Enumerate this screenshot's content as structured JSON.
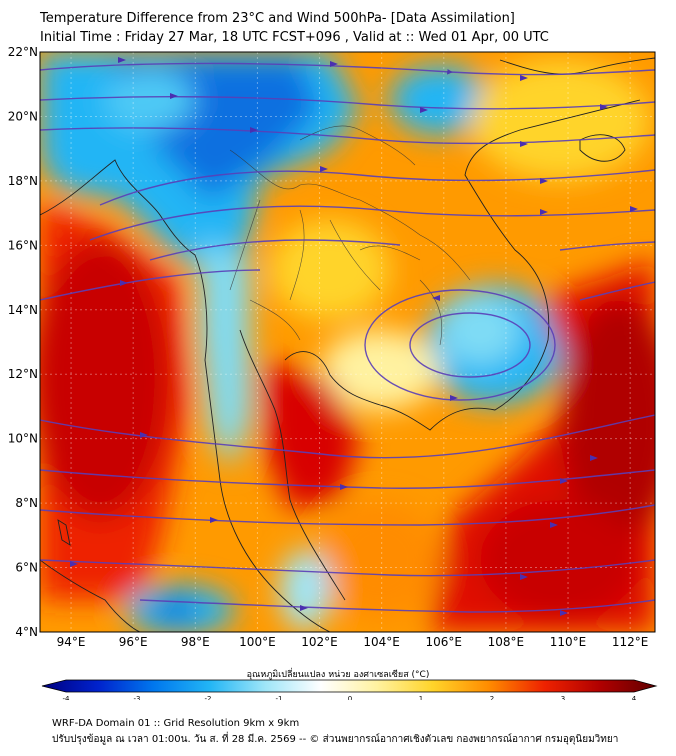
{
  "header": {
    "title_line1": "Temperature Difference from 23°C and Wind 500hPa- [Data Assimilation]",
    "title_line2": "Initial Time : Friday 27 Mar, 18 UTC FCST+096 , Valid at ::  Wed 01 Apr, 00 UTC"
  },
  "map": {
    "lat_range": [
      4,
      22
    ],
    "lon_range": [
      93,
      112.8
    ],
    "lat_ticks": [
      {
        "value": 22,
        "label": "22°N"
      },
      {
        "value": 20,
        "label": "20°N"
      },
      {
        "value": 18,
        "label": "18°N"
      },
      {
        "value": 16,
        "label": "16°N"
      },
      {
        "value": 14,
        "label": "14°N"
      },
      {
        "value": 12,
        "label": "12°N"
      },
      {
        "value": 10,
        "label": "10°N"
      },
      {
        "value": 8,
        "label": "8°N"
      },
      {
        "value": 6,
        "label": "6°N"
      },
      {
        "value": 4,
        "label": "4°N"
      }
    ],
    "lon_ticks": [
      {
        "value": 94,
        "label": "94°E"
      },
      {
        "value": 96,
        "label": "96°E"
      },
      {
        "value": 98,
        "label": "98°E"
      },
      {
        "value": 100,
        "label": "100°E"
      },
      {
        "value": 102,
        "label": "102°E"
      },
      {
        "value": 104,
        "label": "104°E"
      },
      {
        "value": 106,
        "label": "106°E"
      },
      {
        "value": 108,
        "label": "108°E"
      },
      {
        "value": 110,
        "label": "110°E"
      },
      {
        "value": 112,
        "label": "112°E"
      }
    ],
    "streamline_color": "#5a3fb8",
    "coast_color": "#222222"
  },
  "colorbar": {
    "title": "อุณหภูมิเปลี่ยนแปลง หน่วย องศาเซลเซียส (°C)",
    "min": -4,
    "max": 4,
    "ticks": [
      {
        "value": -4,
        "label": "-4"
      },
      {
        "value": -3,
        "label": "-3"
      },
      {
        "value": -2,
        "label": "-2"
      },
      {
        "value": -1,
        "label": "-1"
      },
      {
        "value": 0,
        "label": "0"
      },
      {
        "value": 1,
        "label": "1"
      },
      {
        "value": 2,
        "label": "2"
      },
      {
        "value": 3,
        "label": "3"
      },
      {
        "value": 4,
        "label": "4"
      }
    ],
    "colors": [
      "#000080",
      "#0022cc",
      "#0077ee",
      "#22b5f5",
      "#9fe6f8",
      "#ffffff",
      "#fff2a0",
      "#ffd42a",
      "#ff8c00",
      "#ee2200",
      "#b00000",
      "#600000"
    ]
  },
  "footer": {
    "line1": "WRF-DA Domain 01 :: Grid Resolution 9km x 9km",
    "line2": "ปรับปรุงข้อมูล ณ เวลา 01:00น. วัน ส. ที่ 28 มี.ค. 2569 -- © ส่วนพยากรณ์อากาศเชิงตัวเลข กองพยากรณ์อากาศ กรมอุตุนิยมวิทยา"
  }
}
